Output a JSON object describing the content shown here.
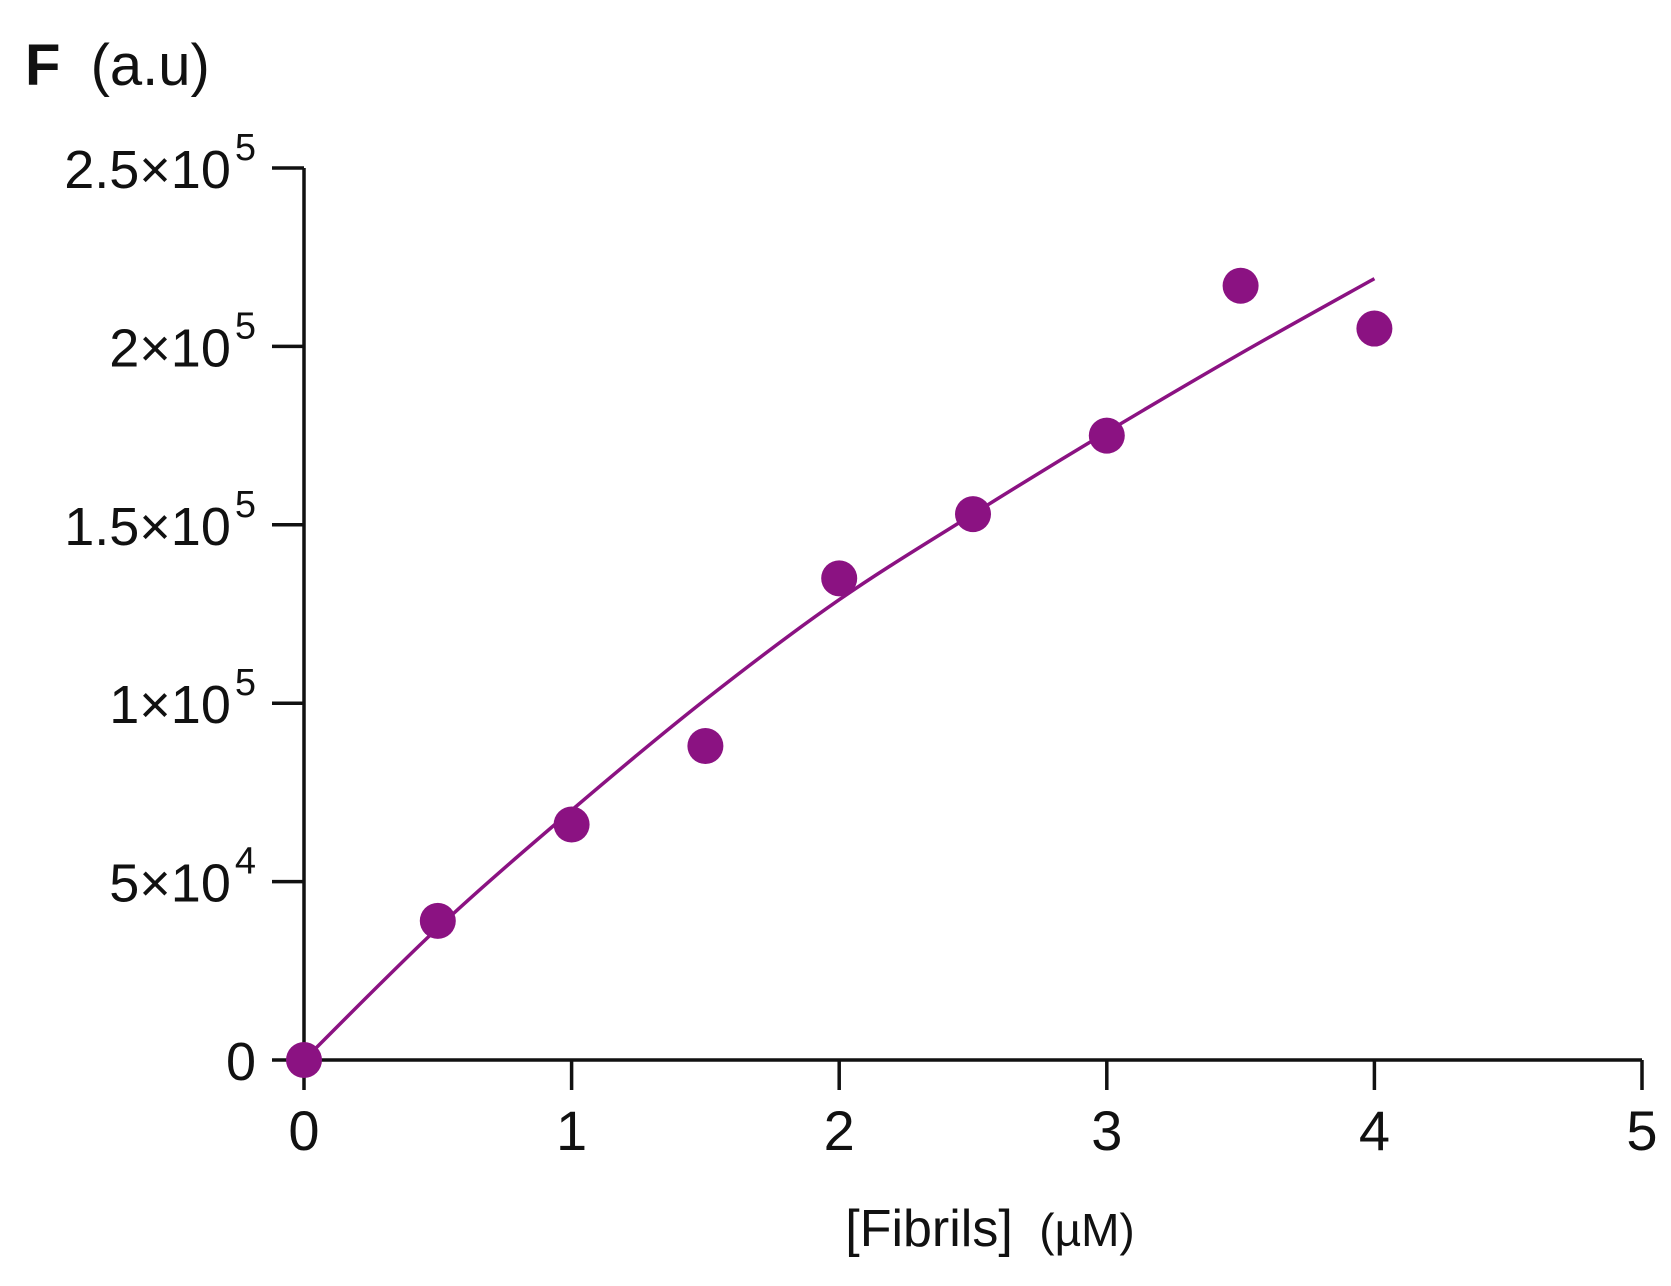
{
  "chart_data": {
    "type": "scatter",
    "title": "",
    "ylabel_bold": "F",
    "ylabel_rest": "(a.u)",
    "xlabel_main": "[Fibrils]",
    "xlabel_unit": "(µM)",
    "xlim": [
      0,
      5
    ],
    "ylim": [
      0,
      250000
    ],
    "grid": false,
    "x_ticks": [
      {
        "value": 0,
        "label": "0"
      },
      {
        "value": 1,
        "label": "1"
      },
      {
        "value": 2,
        "label": "2"
      },
      {
        "value": 3,
        "label": "3"
      },
      {
        "value": 4,
        "label": "4"
      },
      {
        "value": 5,
        "label": "5"
      }
    ],
    "y_ticks": [
      {
        "value": 0,
        "mantissa": "0",
        "exponent": ""
      },
      {
        "value": 50000,
        "mantissa": "5×10",
        "exponent": "4"
      },
      {
        "value": 100000,
        "mantissa": "1×10",
        "exponent": "5"
      },
      {
        "value": 150000,
        "mantissa": "1.5×10",
        "exponent": "5"
      },
      {
        "value": 200000,
        "mantissa": "2×10",
        "exponent": "5"
      },
      {
        "value": 250000,
        "mantissa": "2.5×10",
        "exponent": "5"
      }
    ],
    "color": "#8b1282",
    "series": [
      {
        "points": [
          {
            "x": 0,
            "y": 0
          },
          {
            "x": 0.5,
            "y": 39000
          },
          {
            "x": 1,
            "y": 66000
          },
          {
            "x": 1.5,
            "y": 88000
          },
          {
            "x": 2,
            "y": 135000
          },
          {
            "x": 2.5,
            "y": 153000
          },
          {
            "x": 3,
            "y": 175000
          },
          {
            "x": 3.5,
            "y": 217000
          },
          {
            "x": 4,
            "y": 205000
          }
        ]
      }
    ],
    "fit_curve": [
      {
        "x": 0,
        "y": 0
      },
      {
        "x": 0.5,
        "y": 37000
      },
      {
        "x": 1,
        "y": 70000
      },
      {
        "x": 1.5,
        "y": 101000
      },
      {
        "x": 2,
        "y": 129000
      },
      {
        "x": 2.5,
        "y": 153000
      },
      {
        "x": 3,
        "y": 176000
      },
      {
        "x": 3.5,
        "y": 198000
      },
      {
        "x": 4,
        "y": 219000
      }
    ]
  }
}
